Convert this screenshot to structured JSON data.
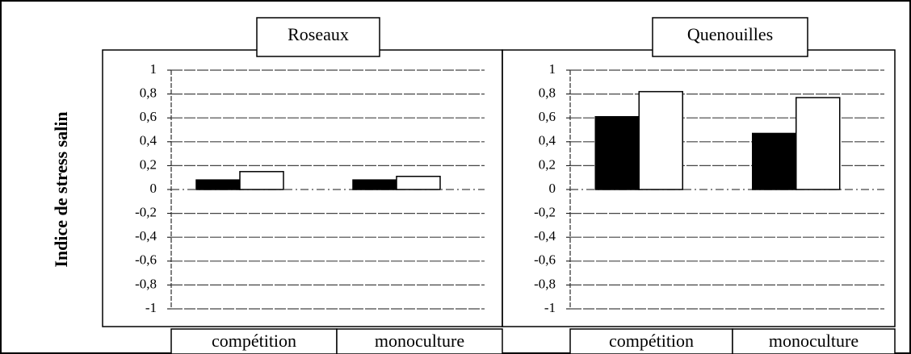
{
  "ylabel": "Indice de stress salin",
  "chart_data": [
    {
      "type": "bar",
      "title": "Roseaux",
      "categories": [
        "compétition",
        "monoculture"
      ],
      "series": [
        {
          "color": "#000000",
          "values": [
            0.08,
            0.08
          ]
        },
        {
          "color": "#ffffff",
          "values": [
            0.15,
            0.11
          ]
        }
      ],
      "ylim": [
        -1,
        1
      ],
      "yticks": [
        -1,
        {
          "value": -0.8,
          "label": "-0,8"
        },
        {
          "value": -0.6,
          "label": "-0,6"
        },
        {
          "value": -0.4,
          "label": "-0,4"
        },
        {
          "value": -0.2,
          "label": "-0,2"
        },
        0,
        {
          "value": 0.2,
          "label": "0,2"
        },
        {
          "value": 0.4,
          "label": "0,4"
        },
        {
          "value": 0.6,
          "label": "0,6"
        },
        {
          "value": 0.8,
          "label": "0,8"
        },
        1
      ],
      "grid": true
    },
    {
      "type": "bar",
      "title": "Quenouilles",
      "categories": [
        "compétition",
        "monoculture"
      ],
      "series": [
        {
          "color": "#000000",
          "values": [
            0.61,
            0.47
          ]
        },
        {
          "color": "#ffffff",
          "values": [
            0.82,
            0.77
          ]
        }
      ],
      "ylim": [
        -1,
        1
      ],
      "yticks": [
        -1,
        {
          "value": -0.8,
          "label": "-0,8"
        },
        {
          "value": -0.6,
          "label": "-0,6"
        },
        {
          "value": -0.4,
          "label": "-0,4"
        },
        {
          "value": -0.2,
          "label": "-0,2"
        },
        0,
        {
          "value": 0.2,
          "label": "0,2"
        },
        {
          "value": 0.4,
          "label": "0,4"
        },
        {
          "value": 0.6,
          "label": "0,6"
        },
        {
          "value": 0.8,
          "label": "0,8"
        },
        1
      ],
      "grid": true
    }
  ]
}
